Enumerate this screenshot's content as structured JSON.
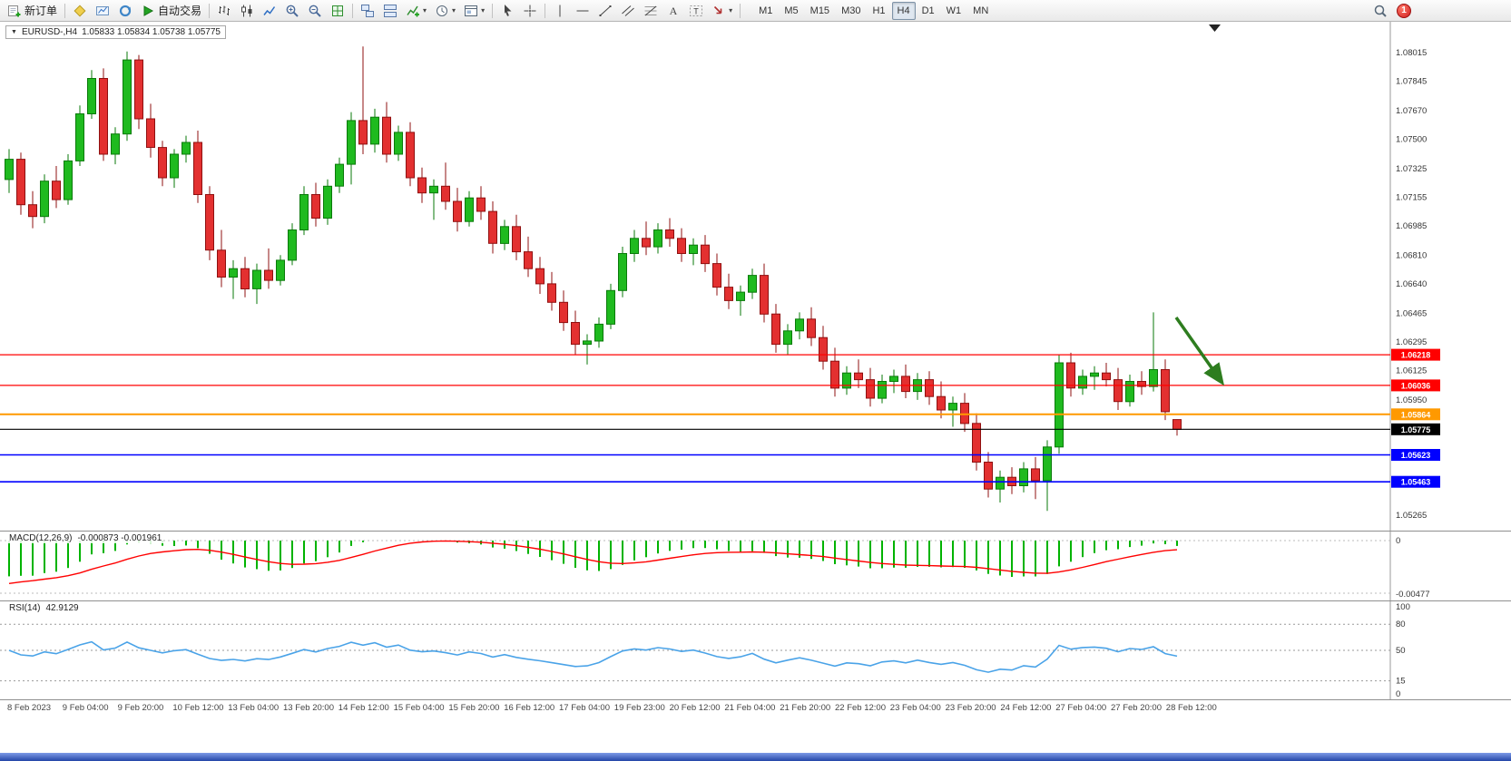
{
  "toolbar": {
    "new_order": "新订单",
    "auto_trading": "自动交易",
    "timeframes": [
      "M1",
      "M5",
      "M15",
      "M30",
      "H1",
      "H4",
      "D1",
      "W1",
      "MN"
    ],
    "active_timeframe": "H4",
    "notification_count": "1"
  },
  "chart": {
    "symbol_period": "EURUSD-,H4",
    "ohlc_text": "1.05833 1.05834 1.05738 1.05775"
  },
  "macd": {
    "label": "MACD(12,26,9)",
    "values": "-0.000873 -0.001961",
    "axis_top": "0",
    "axis_bottom": "-0.00477"
  },
  "rsi": {
    "label": "RSI(14)",
    "value": "42.9129",
    "axis_labels": [
      "100",
      "80",
      "50",
      "15",
      "0"
    ],
    "axis_values": [
      100,
      80,
      50,
      15,
      0
    ],
    "levels": [
      80,
      50,
      15
    ]
  },
  "colors": {
    "up_fill": "#1fba1f",
    "up_stroke": "#0a7a0a",
    "down_fill": "#e33030",
    "down_stroke": "#8f1010",
    "line_red": "#ff0000",
    "line_orange": "#ff9900",
    "line_blue": "#0000ff",
    "line_black": "#000000",
    "macd_bar": "#00b300",
    "macd_signal": "#ff0000",
    "rsi_line": "#4aa3e8",
    "arrow_green": "#2e7d1f"
  },
  "chart_data": {
    "type": "candlestick",
    "symbol": "EURUSD-",
    "period": "H4",
    "title": "EURUSD-,H4 1.05833 1.05834 1.05738 1.05775",
    "current_ohlc": {
      "open": 1.05833,
      "high": 1.05834,
      "low": 1.05738,
      "close": 1.05775
    },
    "y_range": [
      1.052,
      1.081
    ],
    "y_axis_ticks": [
      "1.08015",
      "1.07845",
      "1.07670",
      "1.07500",
      "1.07325",
      "1.07155",
      "1.06985",
      "1.06810",
      "1.06640",
      "1.06465",
      "1.06295",
      "1.06125",
      "1.05950",
      "1.05265"
    ],
    "horizontal_lines": [
      {
        "price": 1.06218,
        "label": "1.06218",
        "color": "#ff0000",
        "width": 1.3
      },
      {
        "price": 1.06036,
        "label": "1.06036",
        "color": "#ff0000",
        "width": 1.3
      },
      {
        "price": 1.05864,
        "label": "1.05864",
        "color": "#ff9900",
        "width": 2
      },
      {
        "price": 1.05775,
        "label": "1.05775",
        "color": "#000000",
        "width": 1.2
      },
      {
        "price": 1.05623,
        "label": "1.05623",
        "color": "#0000ff",
        "width": 1.6
      },
      {
        "price": 1.05463,
        "label": "1.05463",
        "color": "#0000ff",
        "width": 1.6
      }
    ],
    "x_axis_labels": [
      "8 Feb 2023",
      "9 Feb 04:00",
      "9 Feb 20:00",
      "10 Feb 12:00",
      "13 Feb 04:00",
      "13 Feb 20:00",
      "14 Feb 12:00",
      "15 Feb 04:00",
      "15 Feb 20:00",
      "16 Feb 12:00",
      "17 Feb 04:00",
      "19 Feb 23:00",
      "20 Feb 12:00",
      "21 Feb 04:00",
      "21 Feb 20:00",
      "22 Feb 12:00",
      "23 Feb 04:00",
      "23 Feb 20:00",
      "24 Feb 12:00",
      "27 Feb 04:00",
      "27 Feb 20:00",
      "28 Feb 12:00"
    ],
    "candles_ohlc": [
      [
        1.0726,
        1.0744,
        1.0718,
        1.0738
      ],
      [
        1.0738,
        1.0742,
        1.0705,
        1.0711
      ],
      [
        1.0711,
        1.0719,
        1.0697,
        1.0704
      ],
      [
        1.0704,
        1.0729,
        1.07,
        1.0725
      ],
      [
        1.0725,
        1.0734,
        1.0709,
        1.0714
      ],
      [
        1.0714,
        1.0741,
        1.0711,
        1.0737
      ],
      [
        1.0737,
        1.077,
        1.0734,
        1.0765
      ],
      [
        1.0765,
        1.0791,
        1.0762,
        1.0786
      ],
      [
        1.0786,
        1.0792,
        1.0737,
        1.0741
      ],
      [
        1.0741,
        1.0757,
        1.0735,
        1.0753
      ],
      [
        1.0753,
        1.0802,
        1.0749,
        1.0797
      ],
      [
        1.0797,
        1.08,
        1.0756,
        1.0762
      ],
      [
        1.0762,
        1.0771,
        1.0739,
        1.0745
      ],
      [
        1.0745,
        1.0749,
        1.0722,
        1.0727
      ],
      [
        1.0727,
        1.0744,
        1.0721,
        1.0741
      ],
      [
        1.0741,
        1.0752,
        1.0736,
        1.0748
      ],
      [
        1.0748,
        1.0755,
        1.0712,
        1.0717
      ],
      [
        1.0717,
        1.0722,
        1.0678,
        1.0684
      ],
      [
        1.0684,
        1.0696,
        1.0662,
        1.0668
      ],
      [
        1.0668,
        1.0678,
        1.0655,
        1.0673
      ],
      [
        1.0673,
        1.068,
        1.0656,
        1.0661
      ],
      [
        1.0661,
        1.0676,
        1.0652,
        1.0672
      ],
      [
        1.0672,
        1.0685,
        1.0661,
        1.0666
      ],
      [
        1.0666,
        1.0681,
        1.0663,
        1.0678
      ],
      [
        1.0678,
        1.07,
        1.0675,
        1.0696
      ],
      [
        1.0696,
        1.0722,
        1.0693,
        1.0717
      ],
      [
        1.0717,
        1.0724,
        1.0698,
        1.0703
      ],
      [
        1.0703,
        1.0726,
        1.0699,
        1.0722
      ],
      [
        1.0722,
        1.0739,
        1.0718,
        1.0735
      ],
      [
        1.0735,
        1.0766,
        1.0723,
        1.0761
      ],
      [
        1.0761,
        1.0805,
        1.0741,
        1.0747
      ],
      [
        1.0747,
        1.0768,
        1.0742,
        1.0763
      ],
      [
        1.0763,
        1.0772,
        1.0736,
        1.0741
      ],
      [
        1.0741,
        1.0758,
        1.0737,
        1.0754
      ],
      [
        1.0754,
        1.076,
        1.0722,
        1.0727
      ],
      [
        1.0727,
        1.0733,
        1.0712,
        1.0718
      ],
      [
        1.0718,
        1.0726,
        1.0702,
        1.0722
      ],
      [
        1.0722,
        1.0736,
        1.0708,
        1.0713
      ],
      [
        1.0713,
        1.0721,
        1.0695,
        1.0701
      ],
      [
        1.0701,
        1.0719,
        1.0698,
        1.0715
      ],
      [
        1.0715,
        1.0722,
        1.0702,
        1.0707
      ],
      [
        1.0707,
        1.0713,
        1.0682,
        1.0688
      ],
      [
        1.0688,
        1.0702,
        1.0684,
        1.0698
      ],
      [
        1.0698,
        1.0705,
        1.0678,
        1.0683
      ],
      [
        1.0683,
        1.0692,
        1.0668,
        1.0673
      ],
      [
        1.0673,
        1.068,
        1.0658,
        1.0664
      ],
      [
        1.0664,
        1.0671,
        1.0648,
        1.0653
      ],
      [
        1.0653,
        1.066,
        1.0636,
        1.0641
      ],
      [
        1.0641,
        1.0648,
        1.0622,
        1.0628
      ],
      [
        1.0628,
        1.0634,
        1.0616,
        1.063
      ],
      [
        1.063,
        1.0644,
        1.0626,
        1.064
      ],
      [
        1.064,
        1.0664,
        1.0637,
        1.066
      ],
      [
        1.066,
        1.0686,
        1.0656,
        1.0682
      ],
      [
        1.0682,
        1.0696,
        1.0677,
        1.0691
      ],
      [
        1.0691,
        1.0701,
        1.0681,
        1.0686
      ],
      [
        1.0686,
        1.07,
        1.0682,
        1.0696
      ],
      [
        1.0696,
        1.0703,
        1.0686,
        1.0691
      ],
      [
        1.0691,
        1.0697,
        1.0677,
        1.0682
      ],
      [
        1.0682,
        1.0691,
        1.0675,
        1.0687
      ],
      [
        1.0687,
        1.0693,
        1.0671,
        1.0676
      ],
      [
        1.0676,
        1.0682,
        1.0657,
        1.0662
      ],
      [
        1.0662,
        1.067,
        1.0649,
        1.0654
      ],
      [
        1.0654,
        1.0663,
        1.0645,
        1.0659
      ],
      [
        1.0659,
        1.0673,
        1.0655,
        1.0669
      ],
      [
        1.0669,
        1.0676,
        1.0641,
        1.0646
      ],
      [
        1.0646,
        1.0652,
        1.0623,
        1.0628
      ],
      [
        1.0628,
        1.064,
        1.0622,
        1.0636
      ],
      [
        1.0636,
        1.0647,
        1.0631,
        1.0643
      ],
      [
        1.0643,
        1.065,
        1.0627,
        1.0632
      ],
      [
        1.0632,
        1.0639,
        1.0613,
        1.0618
      ],
      [
        1.0618,
        1.0626,
        1.0597,
        1.0602
      ],
      [
        1.0602,
        1.0615,
        1.0598,
        1.0611
      ],
      [
        1.0611,
        1.0619,
        1.0602,
        1.0607
      ],
      [
        1.0607,
        1.0614,
        1.0591,
        1.0596
      ],
      [
        1.0596,
        1.061,
        1.0593,
        1.0606
      ],
      [
        1.0606,
        1.0613,
        1.0599,
        1.0609
      ],
      [
        1.0609,
        1.0616,
        1.0596,
        1.06
      ],
      [
        1.06,
        1.0611,
        1.0595,
        1.0607
      ],
      [
        1.0607,
        1.0612,
        1.0592,
        1.0597
      ],
      [
        1.0597,
        1.0606,
        1.0584,
        1.0589
      ],
      [
        1.0589,
        1.0597,
        1.0579,
        1.0593
      ],
      [
        1.0593,
        1.0599,
        1.0576,
        1.0581
      ],
      [
        1.0581,
        1.0587,
        1.0553,
        1.0558
      ],
      [
        1.0558,
        1.0564,
        1.0537,
        1.0542
      ],
      [
        1.0542,
        1.0553,
        1.0534,
        1.0549
      ],
      [
        1.0549,
        1.0555,
        1.0539,
        1.0544
      ],
      [
        1.0544,
        1.0558,
        1.054,
        1.0554
      ],
      [
        1.0554,
        1.0561,
        1.0536,
        1.0547
      ],
      [
        1.0547,
        1.0571,
        1.0529,
        1.0567
      ],
      [
        1.0567,
        1.0622,
        1.0563,
        1.0617
      ],
      [
        1.0617,
        1.0623,
        1.0597,
        1.0602
      ],
      [
        1.0602,
        1.0613,
        1.0598,
        1.0609
      ],
      [
        1.0609,
        1.0615,
        1.0601,
        1.0611
      ],
      [
        1.0611,
        1.0617,
        1.0603,
        1.0607
      ],
      [
        1.0607,
        1.0614,
        1.0589,
        1.0594
      ],
      [
        1.0594,
        1.061,
        1.0591,
        1.0606
      ],
      [
        1.0606,
        1.0612,
        1.0598,
        1.0603
      ],
      [
        1.0603,
        1.0647,
        1.06,
        1.0613
      ],
      [
        1.0613,
        1.0619,
        1.0583,
        1.0588
      ],
      [
        1.05833,
        1.05834,
        1.05738,
        1.05775
      ]
    ],
    "indicators": [
      {
        "name": "MACD",
        "params": "12,26,9",
        "display_values": "-0.000873 -0.001961",
        "axis": [
          "0",
          "-0.00477"
        ]
      },
      {
        "name": "RSI",
        "params": "14",
        "display_value": "42.9129",
        "levels": [
          80,
          50,
          15
        ]
      }
    ],
    "annotations": [
      {
        "type": "arrow",
        "direction": "down-right",
        "color": "#2e7d1f"
      }
    ]
  }
}
